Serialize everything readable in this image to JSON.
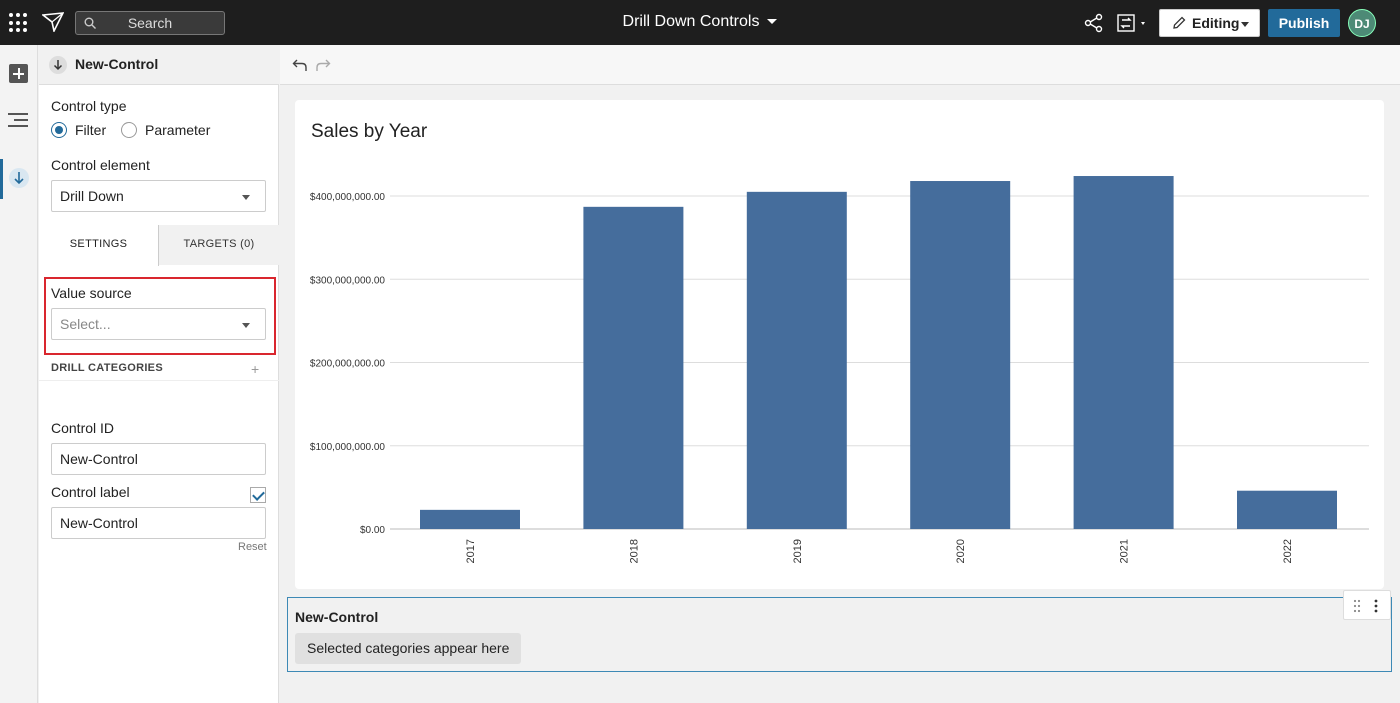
{
  "topbar": {
    "search_placeholder": "Search",
    "document_title": "Drill Down Controls",
    "editing_label": "Editing",
    "publish_label": "Publish",
    "avatar_initials": "DJ"
  },
  "panel": {
    "header_title": "New-Control",
    "control_type_label": "Control type",
    "control_type_options": [
      "Filter",
      "Parameter"
    ],
    "control_type_selected": "Filter",
    "control_element_label": "Control element",
    "control_element_value": "Drill Down",
    "tabs": [
      "SETTINGS",
      "TARGETS (0)"
    ],
    "active_tab": "SETTINGS",
    "value_source_label": "Value source",
    "value_source_placeholder": "Select...",
    "drill_categories_label": "DRILL CATEGORIES",
    "drill_add_glyph": "+",
    "control_id_label": "Control ID",
    "control_id_value": "New-Control",
    "control_label_label": "Control label",
    "control_label_checked": true,
    "control_label_value": "New-Control",
    "reset_label": "Reset"
  },
  "control_card": {
    "title": "New-Control",
    "pill_text": "Selected categories appear here"
  },
  "colors": {
    "bar": "#456d9c",
    "accent": "#226a9a",
    "highlight": "#d9262e"
  },
  "chart_data": {
    "type": "bar",
    "title": "Sales by Year",
    "categories": [
      "2017",
      "2018",
      "2019",
      "2020",
      "2021",
      "2022"
    ],
    "values": [
      23000000,
      387000000,
      405000000,
      418000000,
      424000000,
      46000000
    ],
    "ylim": [
      0,
      400000000
    ],
    "yticks": [
      0,
      100000000,
      200000000,
      300000000,
      400000000
    ],
    "ytick_labels": [
      "$0.00",
      "$100,000,000.00",
      "$200,000,000.00",
      "$300,000,000.00",
      "$400,000,000.00"
    ],
    "grid": true,
    "xlabel": "",
    "ylabel": ""
  }
}
